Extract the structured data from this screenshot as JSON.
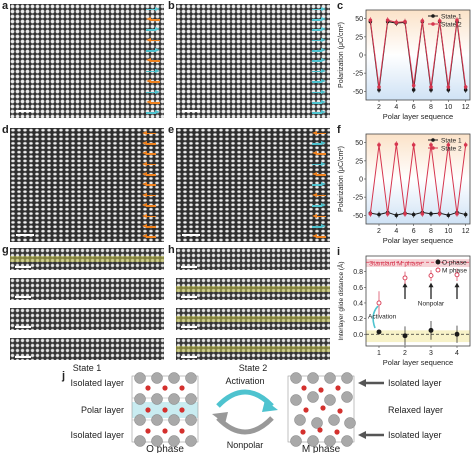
{
  "panel_labels": {
    "a": "a",
    "b": "b",
    "c": "c",
    "d": "d",
    "e": "e",
    "f": "f",
    "g": "g",
    "h": "h",
    "i": "i",
    "j": "j"
  },
  "state_labels": {
    "g": "State 1",
    "h": "State 2"
  },
  "colors": {
    "state1": "#1a1a1a",
    "state2": "#d6364f",
    "cyan": "#4ec3cf",
    "orange": "#f0821e",
    "o_phase": "#1a1a1a",
    "m_phase": "#d6364f",
    "standard_line": "#d6364f"
  },
  "chart_data": [
    {
      "type": "line",
      "panel": "c",
      "xlabel": "Polar layer sequence",
      "ylabel": "Polarization (μC/cm²)",
      "xticks": [
        2,
        4,
        6,
        8,
        10,
        12
      ],
      "yticks": [
        -50,
        -25,
        0,
        25,
        50
      ],
      "xlim": [
        0.5,
        12.5
      ],
      "ylim": [
        -62,
        62
      ],
      "legend_position": "top-right",
      "x": [
        1,
        2,
        3,
        4,
        5,
        6,
        7,
        8,
        9,
        10,
        11,
        12
      ],
      "series": [
        {
          "name": "State 1",
          "values": [
            46,
            -48,
            46,
            44,
            45,
            -48,
            46,
            -48,
            46,
            -48,
            46,
            -48
          ]
        },
        {
          "name": "State 2",
          "values": [
            48,
            -44,
            48,
            45,
            46,
            -42,
            47,
            -44,
            47,
            -44,
            48,
            -44
          ]
        }
      ]
    },
    {
      "type": "line",
      "panel": "f",
      "xlabel": "Polar layer sequence",
      "ylabel": "Polarization (μC/cm²)",
      "xticks": [
        2,
        4,
        6,
        8,
        10,
        12
      ],
      "yticks": [
        -50,
        -25,
        0,
        25,
        50
      ],
      "xlim": [
        0.5,
        12.5
      ],
      "ylim": [
        -62,
        62
      ],
      "legend_position": "top-right",
      "x": [
        1,
        2,
        3,
        4,
        5,
        6,
        7,
        8,
        9,
        10,
        11,
        12
      ],
      "series": [
        {
          "name": "State 1",
          "values": [
            -47,
            -49,
            -46,
            -50,
            -47,
            -49,
            -46,
            -48,
            -47,
            -50,
            -46,
            -49
          ]
        },
        {
          "name": "State 2",
          "values": [
            -48,
            47,
            -48,
            48,
            -48,
            47,
            -48,
            47,
            -48,
            47,
            -48,
            47
          ]
        }
      ]
    },
    {
      "type": "scatter",
      "panel": "i",
      "xlabel": "Polar layer sequence",
      "ylabel": "Interlayer glide distance (Å)",
      "xticks": [
        1,
        2,
        3,
        4
      ],
      "yticks": [
        0.0,
        0.2,
        0.4,
        0.6,
        0.8
      ],
      "ylim": [
        -0.15,
        1.0
      ],
      "legend_position": "top-right",
      "reference_label": "Standard M phase",
      "reference_value": 0.92,
      "zero_line": 0.0,
      "annotations": {
        "activation": "Activation",
        "nonpolar": "Nonpolar"
      },
      "series": [
        {
          "name": "O phase",
          "x": [
            1,
            2,
            3,
            4
          ],
          "values": [
            0.03,
            -0.02,
            0.05,
            0.0
          ],
          "err": [
            0.03,
            0.12,
            0.12,
            0.11
          ]
        },
        {
          "name": "M phase",
          "x": [
            1,
            2,
            3,
            4
          ],
          "values": [
            0.4,
            0.72,
            0.75,
            0.76
          ],
          "err": [
            0.15,
            0.08,
            0.07,
            0.08
          ]
        }
      ]
    }
  ],
  "schematic": {
    "left_labels": [
      "Isolated layer",
      "Polar layer",
      "Isolated layer"
    ],
    "right_labels": [
      "Isolated layer",
      "Relaxed layer",
      "Isolated layer"
    ],
    "arrow_top": "Activation",
    "arrow_bottom": "Nonpolar",
    "left_phase": "O phase",
    "right_phase": "M phase"
  }
}
